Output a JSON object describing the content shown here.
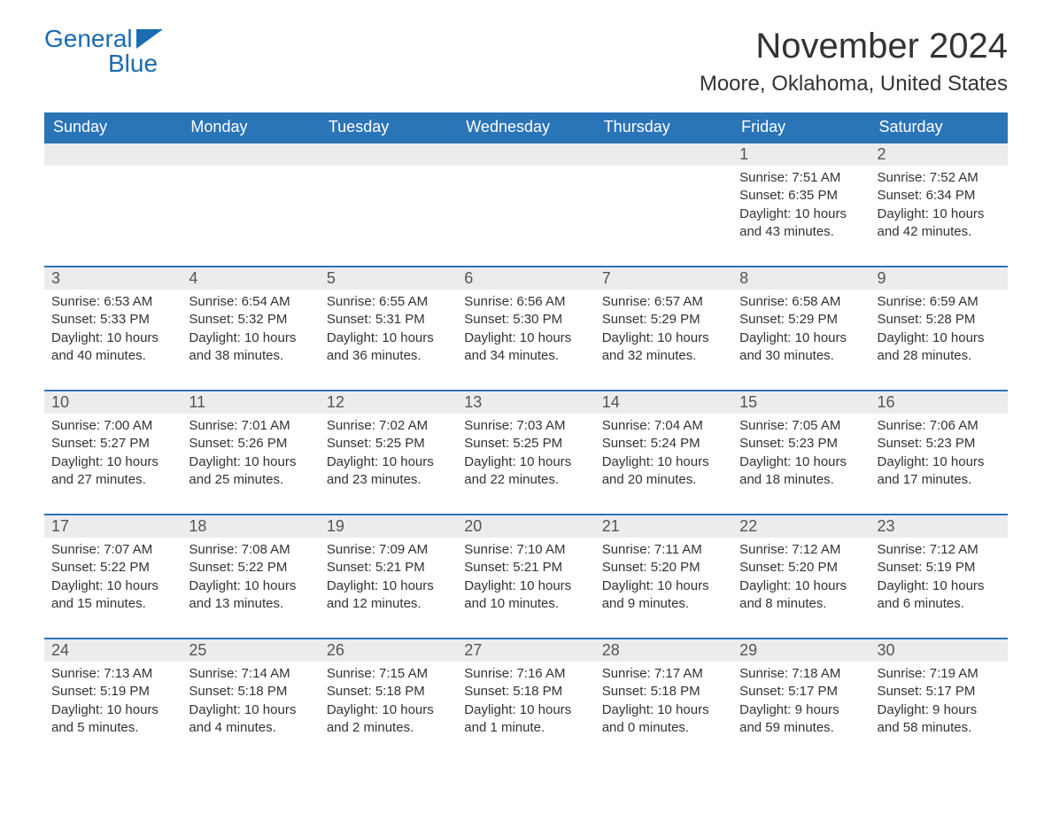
{
  "logo": {
    "word1": "General",
    "word2": "Blue",
    "color": "#1a6bb3"
  },
  "title": "November 2024",
  "location": "Moore, Oklahoma, United States",
  "colors": {
    "header_bg": "#2a74b8",
    "header_text": "#ffffff",
    "daynum_bg": "#ececec",
    "border": "#2a74b8",
    "body_text": "#333333",
    "background": "#ffffff"
  },
  "day_headers": [
    "Sunday",
    "Monday",
    "Tuesday",
    "Wednesday",
    "Thursday",
    "Friday",
    "Saturday"
  ],
  "weeks": [
    [
      {
        "empty": true
      },
      {
        "empty": true
      },
      {
        "empty": true
      },
      {
        "empty": true
      },
      {
        "empty": true
      },
      {
        "day": "1",
        "sunrise": "Sunrise: 7:51 AM",
        "sunset": "Sunset: 6:35 PM",
        "daylight1": "Daylight: 10 hours",
        "daylight2": "and 43 minutes."
      },
      {
        "day": "2",
        "sunrise": "Sunrise: 7:52 AM",
        "sunset": "Sunset: 6:34 PM",
        "daylight1": "Daylight: 10 hours",
        "daylight2": "and 42 minutes."
      }
    ],
    [
      {
        "day": "3",
        "sunrise": "Sunrise: 6:53 AM",
        "sunset": "Sunset: 5:33 PM",
        "daylight1": "Daylight: 10 hours",
        "daylight2": "and 40 minutes."
      },
      {
        "day": "4",
        "sunrise": "Sunrise: 6:54 AM",
        "sunset": "Sunset: 5:32 PM",
        "daylight1": "Daylight: 10 hours",
        "daylight2": "and 38 minutes."
      },
      {
        "day": "5",
        "sunrise": "Sunrise: 6:55 AM",
        "sunset": "Sunset: 5:31 PM",
        "daylight1": "Daylight: 10 hours",
        "daylight2": "and 36 minutes."
      },
      {
        "day": "6",
        "sunrise": "Sunrise: 6:56 AM",
        "sunset": "Sunset: 5:30 PM",
        "daylight1": "Daylight: 10 hours",
        "daylight2": "and 34 minutes."
      },
      {
        "day": "7",
        "sunrise": "Sunrise: 6:57 AM",
        "sunset": "Sunset: 5:29 PM",
        "daylight1": "Daylight: 10 hours",
        "daylight2": "and 32 minutes."
      },
      {
        "day": "8",
        "sunrise": "Sunrise: 6:58 AM",
        "sunset": "Sunset: 5:29 PM",
        "daylight1": "Daylight: 10 hours",
        "daylight2": "and 30 minutes."
      },
      {
        "day": "9",
        "sunrise": "Sunrise: 6:59 AM",
        "sunset": "Sunset: 5:28 PM",
        "daylight1": "Daylight: 10 hours",
        "daylight2": "and 28 minutes."
      }
    ],
    [
      {
        "day": "10",
        "sunrise": "Sunrise: 7:00 AM",
        "sunset": "Sunset: 5:27 PM",
        "daylight1": "Daylight: 10 hours",
        "daylight2": "and 27 minutes."
      },
      {
        "day": "11",
        "sunrise": "Sunrise: 7:01 AM",
        "sunset": "Sunset: 5:26 PM",
        "daylight1": "Daylight: 10 hours",
        "daylight2": "and 25 minutes."
      },
      {
        "day": "12",
        "sunrise": "Sunrise: 7:02 AM",
        "sunset": "Sunset: 5:25 PM",
        "daylight1": "Daylight: 10 hours",
        "daylight2": "and 23 minutes."
      },
      {
        "day": "13",
        "sunrise": "Sunrise: 7:03 AM",
        "sunset": "Sunset: 5:25 PM",
        "daylight1": "Daylight: 10 hours",
        "daylight2": "and 22 minutes."
      },
      {
        "day": "14",
        "sunrise": "Sunrise: 7:04 AM",
        "sunset": "Sunset: 5:24 PM",
        "daylight1": "Daylight: 10 hours",
        "daylight2": "and 20 minutes."
      },
      {
        "day": "15",
        "sunrise": "Sunrise: 7:05 AM",
        "sunset": "Sunset: 5:23 PM",
        "daylight1": "Daylight: 10 hours",
        "daylight2": "and 18 minutes."
      },
      {
        "day": "16",
        "sunrise": "Sunrise: 7:06 AM",
        "sunset": "Sunset: 5:23 PM",
        "daylight1": "Daylight: 10 hours",
        "daylight2": "and 17 minutes."
      }
    ],
    [
      {
        "day": "17",
        "sunrise": "Sunrise: 7:07 AM",
        "sunset": "Sunset: 5:22 PM",
        "daylight1": "Daylight: 10 hours",
        "daylight2": "and 15 minutes."
      },
      {
        "day": "18",
        "sunrise": "Sunrise: 7:08 AM",
        "sunset": "Sunset: 5:22 PM",
        "daylight1": "Daylight: 10 hours",
        "daylight2": "and 13 minutes."
      },
      {
        "day": "19",
        "sunrise": "Sunrise: 7:09 AM",
        "sunset": "Sunset: 5:21 PM",
        "daylight1": "Daylight: 10 hours",
        "daylight2": "and 12 minutes."
      },
      {
        "day": "20",
        "sunrise": "Sunrise: 7:10 AM",
        "sunset": "Sunset: 5:21 PM",
        "daylight1": "Daylight: 10 hours",
        "daylight2": "and 10 minutes."
      },
      {
        "day": "21",
        "sunrise": "Sunrise: 7:11 AM",
        "sunset": "Sunset: 5:20 PM",
        "daylight1": "Daylight: 10 hours",
        "daylight2": "and 9 minutes."
      },
      {
        "day": "22",
        "sunrise": "Sunrise: 7:12 AM",
        "sunset": "Sunset: 5:20 PM",
        "daylight1": "Daylight: 10 hours",
        "daylight2": "and 8 minutes."
      },
      {
        "day": "23",
        "sunrise": "Sunrise: 7:12 AM",
        "sunset": "Sunset: 5:19 PM",
        "daylight1": "Daylight: 10 hours",
        "daylight2": "and 6 minutes."
      }
    ],
    [
      {
        "day": "24",
        "sunrise": "Sunrise: 7:13 AM",
        "sunset": "Sunset: 5:19 PM",
        "daylight1": "Daylight: 10 hours",
        "daylight2": "and 5 minutes."
      },
      {
        "day": "25",
        "sunrise": "Sunrise: 7:14 AM",
        "sunset": "Sunset: 5:18 PM",
        "daylight1": "Daylight: 10 hours",
        "daylight2": "and 4 minutes."
      },
      {
        "day": "26",
        "sunrise": "Sunrise: 7:15 AM",
        "sunset": "Sunset: 5:18 PM",
        "daylight1": "Daylight: 10 hours",
        "daylight2": "and 2 minutes."
      },
      {
        "day": "27",
        "sunrise": "Sunrise: 7:16 AM",
        "sunset": "Sunset: 5:18 PM",
        "daylight1": "Daylight: 10 hours",
        "daylight2": "and 1 minute."
      },
      {
        "day": "28",
        "sunrise": "Sunrise: 7:17 AM",
        "sunset": "Sunset: 5:18 PM",
        "daylight1": "Daylight: 10 hours",
        "daylight2": "and 0 minutes."
      },
      {
        "day": "29",
        "sunrise": "Sunrise: 7:18 AM",
        "sunset": "Sunset: 5:17 PM",
        "daylight1": "Daylight: 9 hours",
        "daylight2": "and 59 minutes."
      },
      {
        "day": "30",
        "sunrise": "Sunrise: 7:19 AM",
        "sunset": "Sunset: 5:17 PM",
        "daylight1": "Daylight: 9 hours",
        "daylight2": "and 58 minutes."
      }
    ]
  ]
}
